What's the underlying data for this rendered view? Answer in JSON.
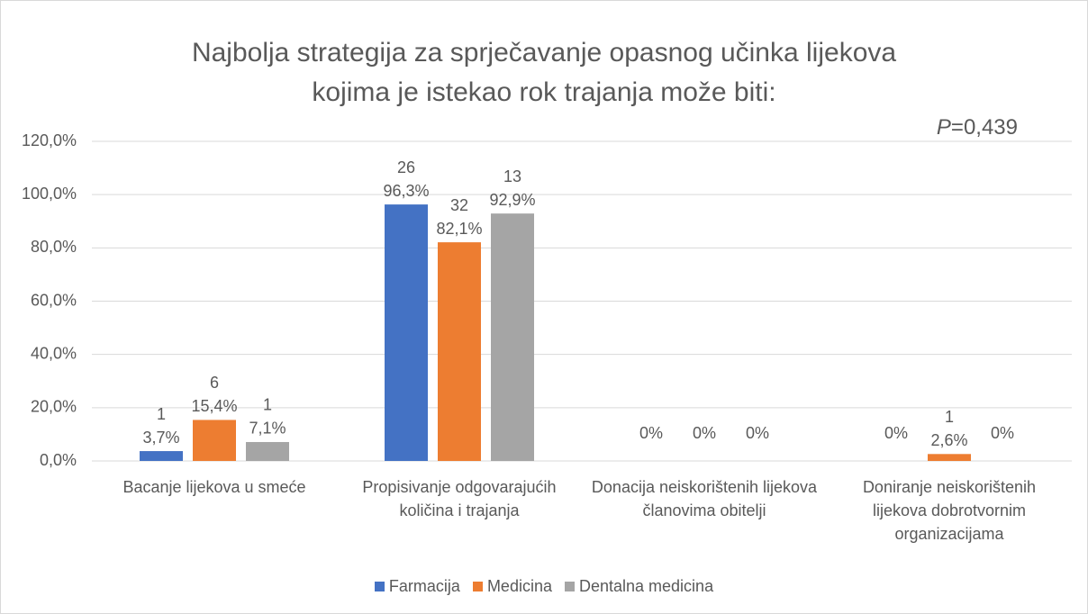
{
  "chart_data": {
    "type": "bar",
    "title": [
      "Najbolja strategija za sprječavanje opasnog učinka lijekova",
      "kojima je istekao rok trajanja može biti:"
    ],
    "annotation": "P=0,439",
    "categories": [
      "Bacanje lijekova u smeće",
      "Propisivanje odgovarajućih količina i trajanja",
      "Donacija neiskorištenih lijekova članovima obitelji",
      "Doniranje neiskorištenih lijekova dobrotvornim organizacijama"
    ],
    "series": [
      {
        "name": "Farmacija",
        "color": "#4472c4",
        "values": [
          3.7,
          96.3,
          0,
          0
        ],
        "value_labels": [
          "3,7%",
          "96,3%",
          "0%",
          "0%"
        ],
        "counts": [
          1,
          26,
          null,
          null
        ]
      },
      {
        "name": "Medicina",
        "color": "#ed7d31",
        "values": [
          15.4,
          82.1,
          0,
          2.6
        ],
        "value_labels": [
          "15,4%",
          "82,1%",
          "0%",
          "2,6%"
        ],
        "counts": [
          6,
          32,
          null,
          1
        ]
      },
      {
        "name": "Dentalna medicina",
        "color": "#a5a5a5",
        "values": [
          7.1,
          92.9,
          0,
          0
        ],
        "value_labels": [
          "7,1%",
          "92,9%",
          "0%",
          "0%"
        ],
        "counts": [
          1,
          13,
          null,
          null
        ]
      }
    ],
    "ylim": [
      0,
      120
    ],
    "yticks": [
      {
        "value": 0,
        "label": "0,0%"
      },
      {
        "value": 20,
        "label": "20,0%"
      },
      {
        "value": 40,
        "label": "40,0%"
      },
      {
        "value": 60,
        "label": "60,0%"
      },
      {
        "value": 80,
        "label": "80,0%"
      },
      {
        "value": 100,
        "label": "100,0%"
      },
      {
        "value": 120,
        "label": "120,0%"
      }
    ],
    "grid": true,
    "legend": "bottom"
  }
}
